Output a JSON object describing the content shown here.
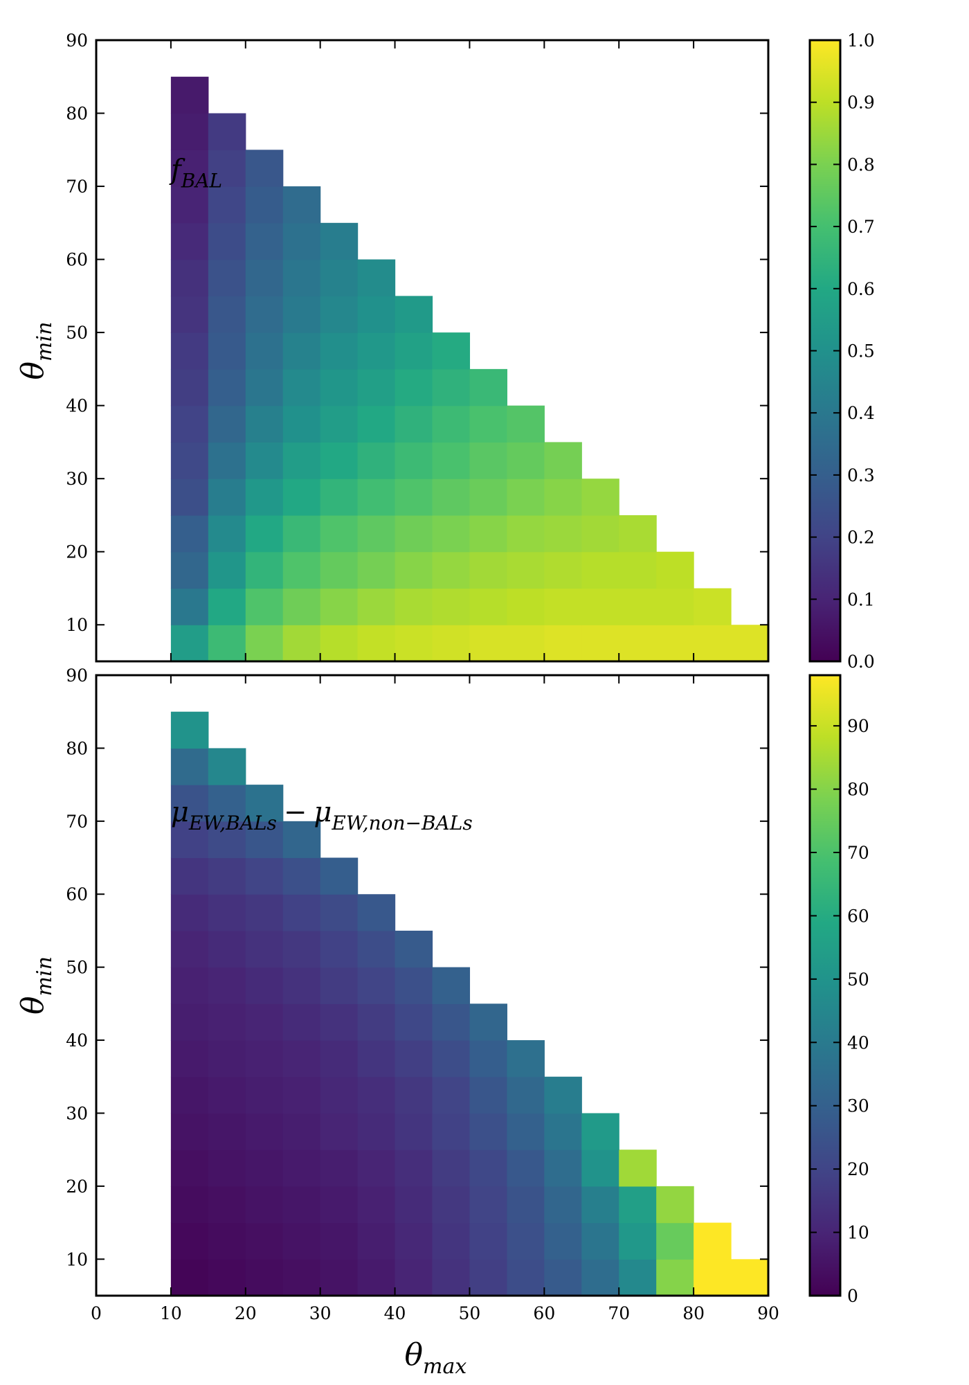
{
  "chart_data": [
    {
      "type": "heatmap",
      "annotation": {
        "main": "f",
        "sub": "BAL"
      },
      "ylabel": {
        "main": "θ",
        "sub": "min"
      },
      "xlim": [
        0,
        90
      ],
      "ylim": [
        5,
        90
      ],
      "cell_size": 5,
      "y_ticks": [
        10,
        20,
        30,
        40,
        50,
        60,
        70,
        80,
        90
      ],
      "x_tick_labels_shown": false,
      "colormap": "viridis",
      "colorbar": {
        "min": 0.0,
        "max": 1.0,
        "ticks": [
          "0.0",
          "0.1",
          "0.2",
          "0.3",
          "0.4",
          "0.5",
          "0.6",
          "0.7",
          "0.8",
          "0.9",
          "1.0"
        ]
      },
      "row_start_x": 10,
      "rows": [
        {
          "theta_min": 5,
          "values": [
            0.55,
            0.68,
            0.8,
            0.86,
            0.89,
            0.91,
            0.92,
            0.93,
            0.94,
            0.94,
            0.95,
            0.95,
            0.95,
            0.95,
            0.95,
            0.95
          ]
        },
        {
          "theta_min": 10,
          "values": [
            0.4,
            0.6,
            0.72,
            0.78,
            0.82,
            0.85,
            0.87,
            0.88,
            0.89,
            0.9,
            0.91,
            0.91,
            0.91,
            0.91,
            0.92
          ]
        },
        {
          "theta_min": 15,
          "values": [
            0.33,
            0.52,
            0.65,
            0.72,
            0.76,
            0.79,
            0.82,
            0.84,
            0.86,
            0.87,
            0.88,
            0.89,
            0.89,
            0.9
          ]
        },
        {
          "theta_min": 20,
          "values": [
            0.3,
            0.47,
            0.6,
            0.67,
            0.72,
            0.75,
            0.78,
            0.8,
            0.82,
            0.84,
            0.85,
            0.86,
            0.87
          ]
        },
        {
          "theta_min": 25,
          "values": [
            0.24,
            0.42,
            0.53,
            0.6,
            0.65,
            0.69,
            0.72,
            0.75,
            0.77,
            0.8,
            0.82,
            0.84
          ]
        },
        {
          "theta_min": 30,
          "values": [
            0.22,
            0.37,
            0.47,
            0.55,
            0.6,
            0.64,
            0.68,
            0.71,
            0.74,
            0.76,
            0.79
          ]
        },
        {
          "theta_min": 35,
          "values": [
            0.2,
            0.33,
            0.43,
            0.5,
            0.55,
            0.6,
            0.64,
            0.68,
            0.71,
            0.73
          ]
        },
        {
          "theta_min": 40,
          "values": [
            0.18,
            0.3,
            0.39,
            0.47,
            0.52,
            0.56,
            0.61,
            0.64,
            0.67
          ]
        },
        {
          "theta_min": 45,
          "values": [
            0.17,
            0.28,
            0.37,
            0.44,
            0.49,
            0.53,
            0.57,
            0.61
          ]
        },
        {
          "theta_min": 50,
          "values": [
            0.15,
            0.27,
            0.35,
            0.41,
            0.46,
            0.5,
            0.54
          ]
        },
        {
          "theta_min": 55,
          "values": [
            0.14,
            0.25,
            0.33,
            0.39,
            0.44,
            0.48
          ]
        },
        {
          "theta_min": 60,
          "values": [
            0.12,
            0.23,
            0.31,
            0.37,
            0.42
          ]
        },
        {
          "theta_min": 65,
          "values": [
            0.1,
            0.21,
            0.29,
            0.35
          ]
        },
        {
          "theta_min": 70,
          "values": [
            0.09,
            0.19,
            0.27
          ]
        },
        {
          "theta_min": 75,
          "values": [
            0.08,
            0.17
          ]
        },
        {
          "theta_min": 80,
          "values": [
            0.07
          ]
        }
      ]
    },
    {
      "type": "heatmap",
      "annotation": {
        "main": "μ",
        "sub": "EW,BALs",
        "minus": "−",
        "main2": "μ",
        "sub2": "EW,non−BALs"
      },
      "ylabel": {
        "main": "θ",
        "sub": "min"
      },
      "xlabel": {
        "main": "θ",
        "sub": "max"
      },
      "xlim": [
        0,
        90
      ],
      "ylim": [
        5,
        90
      ],
      "cell_size": 5,
      "x_ticks": [
        0,
        10,
        20,
        30,
        40,
        50,
        60,
        70,
        80,
        90
      ],
      "y_ticks": [
        10,
        20,
        30,
        40,
        50,
        60,
        70,
        80,
        90
      ],
      "colormap": "viridis",
      "colorbar": {
        "min": 0,
        "max": 98,
        "ticks": [
          "0",
          "10",
          "20",
          "30",
          "40",
          "50",
          "60",
          "70",
          "80",
          "90"
        ]
      },
      "row_start_x": 10,
      "rows": [
        {
          "theta_min": 5,
          "values": [
            1,
            2,
            3,
            4,
            5,
            7,
            10,
            14,
            18,
            23,
            28,
            35,
            46,
            80,
            100,
            100
          ]
        },
        {
          "theta_min": 10,
          "values": [
            2,
            3,
            4,
            5,
            6,
            8,
            11,
            15,
            19,
            24,
            30,
            38,
            52,
            75,
            100
          ]
        },
        {
          "theta_min": 15,
          "values": [
            3,
            4,
            5,
            6,
            7,
            9,
            12,
            16,
            20,
            25,
            32,
            42,
            55,
            82
          ]
        },
        {
          "theta_min": 20,
          "values": [
            4,
            5,
            6,
            7,
            8,
            10,
            13,
            17,
            21,
            27,
            35,
            50,
            84
          ]
        },
        {
          "theta_min": 25,
          "values": [
            5,
            6,
            7,
            8,
            10,
            12,
            15,
            19,
            24,
            30,
            38,
            53
          ]
        },
        {
          "theta_min": 30,
          "values": [
            6,
            7,
            8,
            9,
            11,
            13,
            16,
            20,
            26,
            33,
            41
          ]
        },
        {
          "theta_min": 35,
          "values": [
            7,
            8,
            9,
            10,
            12,
            15,
            18,
            23,
            29,
            36
          ]
        },
        {
          "theta_min": 40,
          "values": [
            8,
            9,
            10,
            12,
            14,
            17,
            21,
            26,
            32
          ]
        },
        {
          "theta_min": 45,
          "values": [
            9,
            10,
            12,
            14,
            17,
            20,
            24,
            30
          ]
        },
        {
          "theta_min": 50,
          "values": [
            10,
            12,
            14,
            16,
            19,
            23,
            28
          ]
        },
        {
          "theta_min": 55,
          "values": [
            12,
            14,
            16,
            19,
            22,
            27
          ]
        },
        {
          "theta_min": 60,
          "values": [
            15,
            17,
            20,
            24,
            29
          ]
        },
        {
          "theta_min": 65,
          "values": [
            19,
            22,
            26,
            32
          ]
        },
        {
          "theta_min": 70,
          "values": [
            25,
            30,
            37
          ]
        },
        {
          "theta_min": 75,
          "values": [
            34,
            45
          ]
        },
        {
          "theta_min": 80,
          "values": [
            50
          ]
        }
      ]
    }
  ]
}
